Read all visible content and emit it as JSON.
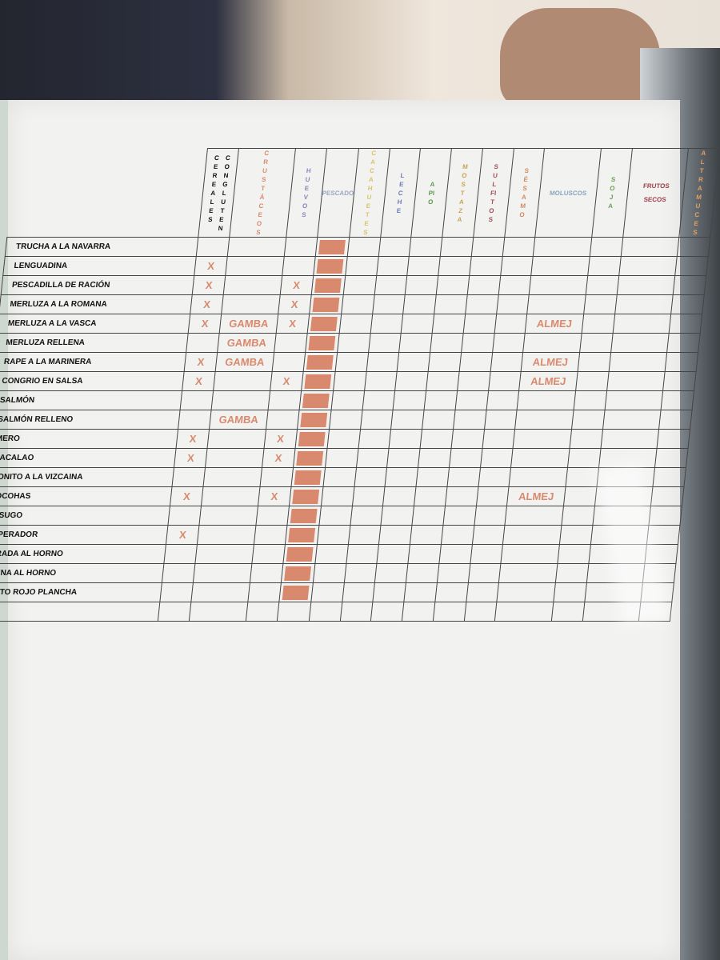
{
  "columns": [
    {
      "label": "CEREALES CON GLUTEN",
      "words": [
        "CEREALES",
        "CON GLUTEN"
      ],
      "color": "#111111",
      "orientation": "vertical"
    },
    {
      "label": "CRUSTÁCEOS",
      "words": [
        "CRUSTÁCEOS"
      ],
      "color": "#d98a6e",
      "orientation": "vertical"
    },
    {
      "label": "HUEVOS",
      "words": [
        "HUEVOS"
      ],
      "color": "#8a86b8",
      "orientation": "vertical"
    },
    {
      "label": "PESCADO",
      "words": [
        "PESCADO"
      ],
      "color": "#9aa8c4",
      "orientation": "horizontal"
    },
    {
      "label": "CACAHUETES",
      "words": [
        "CACAHUETES"
      ],
      "color": "#d8c46a",
      "orientation": "vertical"
    },
    {
      "label": "LECHE",
      "words": [
        "LECHE"
      ],
      "color": "#6d7bb8",
      "orientation": "vertical"
    },
    {
      "label": "APIO",
      "words": [
        "APIO"
      ],
      "color": "#5e9a50",
      "orientation": "vertical"
    },
    {
      "label": "MOSTAZA",
      "words": [
        "MOSTAZA"
      ],
      "color": "#c9a455",
      "orientation": "vertical"
    },
    {
      "label": "SULFITOS",
      "words": [
        "SULFITOS"
      ],
      "color": "#a0505a",
      "orientation": "vertical"
    },
    {
      "label": "SÉSAMO",
      "words": [
        "SÉSAMO"
      ],
      "color": "#d08a62",
      "orientation": "vertical"
    },
    {
      "label": "MOLUSCOS",
      "words": [
        "MOLUSCOS"
      ],
      "color": "#8aa6c0",
      "orientation": "horizontal"
    },
    {
      "label": "SOJA",
      "words": [
        "SOJA"
      ],
      "color": "#6aa05a",
      "orientation": "vertical"
    },
    {
      "label": "FRUTOS SECOS",
      "words": [
        "FRUTOS",
        "SECOS"
      ],
      "color": "#a0404a",
      "orientation": "horizontal"
    },
    {
      "label": "ALTRAMUCES",
      "words": [
        "ALTRAMUCES"
      ],
      "color": "#e0a060",
      "orientation": "vertical"
    }
  ],
  "rows": [
    {
      "dish": "TRUCHA A LA NAVARRA",
      "cells": [
        "",
        "",
        "",
        "box",
        "",
        "",
        "",
        "",
        "",
        "",
        "",
        "",
        "",
        ""
      ]
    },
    {
      "dish": "LENGUADINA",
      "cells": [
        "X",
        "",
        "",
        "box",
        "",
        "",
        "",
        "",
        "",
        "",
        "",
        "",
        "",
        ""
      ]
    },
    {
      "dish": "PESCADILLA DE RACIÓN",
      "cells": [
        "X",
        "",
        "X",
        "box",
        "",
        "",
        "",
        "",
        "",
        "",
        "",
        "",
        "",
        ""
      ]
    },
    {
      "dish": "MERLUZA A LA ROMANA",
      "cells": [
        "X",
        "",
        "X",
        "box",
        "",
        "",
        "",
        "",
        "",
        "",
        "",
        "",
        "",
        ""
      ]
    },
    {
      "dish": "MERLUZA A LA VASCA",
      "cells": [
        "X",
        "GAMBA",
        "X",
        "box",
        "",
        "",
        "",
        "",
        "",
        "",
        "ALMEJ",
        "",
        "",
        ""
      ]
    },
    {
      "dish": "MERLUZA RELLENA",
      "cells": [
        "",
        "GAMBA",
        "",
        "box",
        "",
        "",
        "",
        "",
        "",
        "",
        "",
        "",
        "",
        ""
      ]
    },
    {
      "dish": "RAPE A LA MARINERA",
      "cells": [
        "X",
        "GAMBA",
        "",
        "box",
        "",
        "",
        "",
        "",
        "",
        "",
        "ALMEJ",
        "",
        "",
        ""
      ]
    },
    {
      "dish": "CONGRIO EN SALSA",
      "cells": [
        "X",
        "",
        "X",
        "box",
        "",
        "",
        "",
        "",
        "",
        "",
        "ALMEJ",
        "",
        "",
        ""
      ]
    },
    {
      "dish": "SALMÓN",
      "cells": [
        "",
        "",
        "",
        "box",
        "",
        "",
        "",
        "",
        "",
        "",
        "",
        "",
        "",
        ""
      ]
    },
    {
      "dish": "SALMÓN RELLENO",
      "cells": [
        "",
        "GAMBA",
        "",
        "box",
        "",
        "",
        "",
        "",
        "",
        "",
        "",
        "",
        "",
        ""
      ]
    },
    {
      "dish": "MERO",
      "cells": [
        "X",
        "",
        "X",
        "box",
        "",
        "",
        "",
        "",
        "",
        "",
        "",
        "",
        "",
        ""
      ]
    },
    {
      "dish": "BACALAO",
      "cells": [
        "X",
        "",
        "X",
        "box",
        "",
        "",
        "",
        "",
        "",
        "",
        "",
        "",
        "",
        ""
      ]
    },
    {
      "dish": "BONITO A LA VIZCAINA",
      "cells": [
        "",
        "",
        "",
        "box",
        "",
        "",
        "",
        "",
        "",
        "",
        "",
        "",
        "",
        ""
      ]
    },
    {
      "dish": "COCOHAS",
      "cells": [
        "X",
        "",
        "X",
        "box",
        "",
        "",
        "",
        "",
        "",
        "",
        "ALMEJ",
        "",
        "",
        ""
      ]
    },
    {
      "dish": "BESUGO",
      "cells": [
        "",
        "",
        "",
        "box",
        "",
        "",
        "",
        "",
        "",
        "",
        "",
        "",
        "",
        ""
      ]
    },
    {
      "dish": "EMPERADOR",
      "cells": [
        "X",
        "",
        "",
        "box",
        "",
        "",
        "",
        "",
        "",
        "",
        "",
        "",
        "",
        ""
      ]
    },
    {
      "dish": "DORADA AL HORNO",
      "cells": [
        "",
        "",
        "",
        "box",
        "",
        "",
        "",
        "",
        "",
        "",
        "",
        "",
        "",
        ""
      ]
    },
    {
      "dish": "LUBINA AL HORNO",
      "cells": [
        "",
        "",
        "",
        "box",
        "",
        "",
        "",
        "",
        "",
        "",
        "",
        "",
        "",
        ""
      ]
    },
    {
      "dish": "BONITO ROJO PLANCHA",
      "cells": [
        "",
        "",
        "",
        "box",
        "",
        "",
        "",
        "",
        "",
        "",
        "",
        "",
        "",
        ""
      ]
    },
    {
      "dish": "",
      "cells": [
        "",
        "",
        "",
        "",
        "",
        "",
        "",
        "",
        "",
        "",
        "",
        "",
        "",
        ""
      ]
    }
  ],
  "colors": {
    "mark": "#d98a6e",
    "grid": "#444444",
    "paper": "#f2f3f1"
  }
}
